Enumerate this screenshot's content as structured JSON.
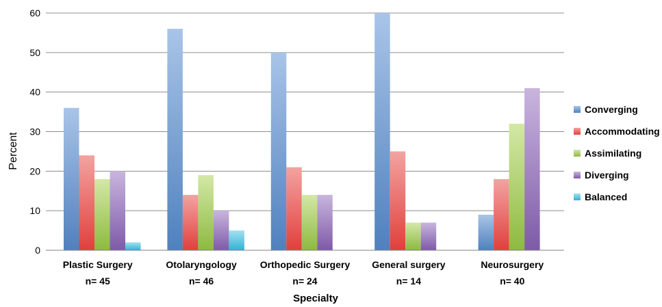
{
  "chart_data": {
    "type": "bar",
    "title": "",
    "xlabel": "Specialty",
    "ylabel": "Percent",
    "ylim": [
      0,
      60
    ],
    "yticks": [
      0,
      10,
      20,
      30,
      40,
      50,
      60
    ],
    "grid": true,
    "legend_position": "right",
    "categories": [
      {
        "name": "Plastic Surgery",
        "n": "n= 45"
      },
      {
        "name": "Otolaryngology",
        "n": "n= 46"
      },
      {
        "name": "Orthopedic Surgery",
        "n": "n= 24"
      },
      {
        "name": "General surgery",
        "n": "n= 14"
      },
      {
        "name": "Neurosurgery",
        "n": "n= 40"
      }
    ],
    "series": [
      {
        "name": "Converging",
        "color": "#4F81BD",
        "light": "#A9C4E8",
        "values": [
          36,
          56,
          50,
          60,
          9
        ]
      },
      {
        "name": "Accommodating",
        "color": "#E0403C",
        "light": "#F3A3A1",
        "values": [
          24,
          14,
          21,
          25,
          18
        ]
      },
      {
        "name": "Assimilating",
        "color": "#8DBA3F",
        "light": "#D3E8A6",
        "values": [
          18,
          19,
          14,
          7,
          32
        ]
      },
      {
        "name": "Diverging",
        "color": "#7E5AA8",
        "light": "#C9B5DE",
        "values": [
          20,
          10,
          14,
          7,
          41
        ]
      },
      {
        "name": "Balanced",
        "color": "#33B2D6",
        "light": "#A3E0F0",
        "values": [
          2,
          5,
          0,
          0,
          0
        ]
      }
    ]
  }
}
